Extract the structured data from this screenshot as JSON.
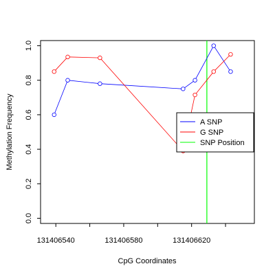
{
  "chart_data": {
    "type": "line",
    "title": "",
    "xlabel": "CpG Coordinates",
    "ylabel": "Methylation Frequency",
    "xlim": [
      131406531,
      131406657
    ],
    "ylim": [
      -0.03,
      1.03
    ],
    "x_ticks": [
      131406540,
      131406560,
      131406580,
      131406600,
      131406620,
      131406640
    ],
    "x_tick_labels": [
      "131406540",
      "",
      "131406580",
      "",
      "131406620",
      ""
    ],
    "y_ticks": [
      0.0,
      0.2,
      0.4,
      0.6,
      0.8,
      1.0
    ],
    "y_tick_labels": [
      "0.0",
      "0.2",
      "0.4",
      "0.6",
      "0.8",
      "1.0"
    ],
    "grid": false,
    "legend_position": "right",
    "series": [
      {
        "name": "A SNP",
        "color": "#0000ff",
        "x": [
          131406539,
          131406547,
          131406566,
          131406615,
          131406622,
          131406633,
          131406643
        ],
        "y": [
          0.6,
          0.8,
          0.78,
          0.75,
          0.8,
          1.0,
          0.85
        ]
      },
      {
        "name": "G SNP",
        "color": "#ff0000",
        "x": [
          131406539,
          131406547,
          131406566,
          131406615,
          131406622,
          131406633,
          131406643
        ],
        "y": [
          0.85,
          0.935,
          0.93,
          0.39,
          0.715,
          0.85,
          0.95
        ]
      }
    ],
    "vlines": [
      {
        "name": "SNP Position",
        "color": "#00ff00",
        "x": 131406629
      }
    ],
    "legend": [
      {
        "label": "A SNP",
        "color": "#0000ff"
      },
      {
        "label": "G SNP",
        "color": "#ff0000"
      },
      {
        "label": "SNP Position",
        "color": "#00ff00"
      }
    ]
  }
}
